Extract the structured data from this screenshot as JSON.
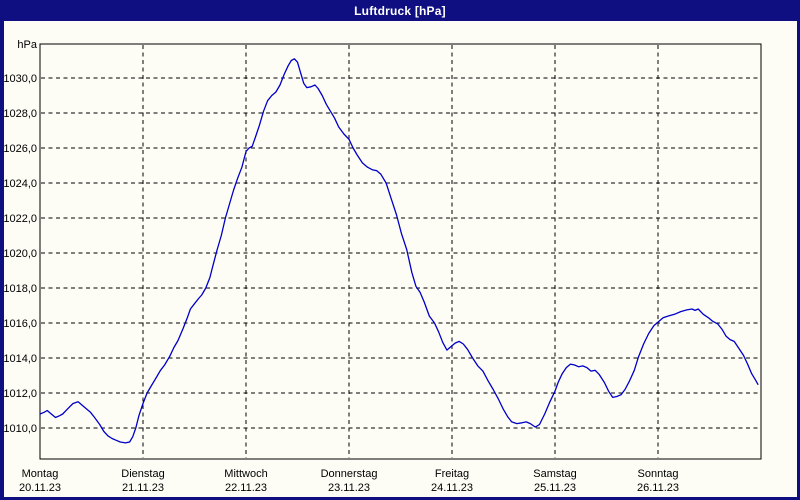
{
  "window": {
    "title": "Luftdruck [hPa]"
  },
  "colors": {
    "frame": "#0f0f82",
    "title_text": "#ffffff",
    "background": "#fdfdf6",
    "plot_background": "#fdfdf6",
    "grid": "#000000",
    "axis_text": "#000000",
    "line": "#0000c8"
  },
  "chart_data": {
    "type": "line",
    "title": "Luftdruck [hPa]",
    "ylabel": "hPa",
    "xlabel": "",
    "ylim": [
      1008.2,
      1032.0
    ],
    "xlim_days": [
      0,
      7
    ],
    "grid": "dashed",
    "legend_position": "none",
    "y_axis": {
      "unit_label": "hPa",
      "ticks": [
        {
          "value": 1030,
          "label": "1030,0"
        },
        {
          "value": 1028,
          "label": "1028,0"
        },
        {
          "value": 1026,
          "label": "1026,0"
        },
        {
          "value": 1024,
          "label": "1024,0"
        },
        {
          "value": 1022,
          "label": "1022,0"
        },
        {
          "value": 1020,
          "label": "1020,0"
        },
        {
          "value": 1018,
          "label": "1018,0"
        },
        {
          "value": 1016,
          "label": "1016,0"
        },
        {
          "value": 1014,
          "label": "1014,0"
        },
        {
          "value": 1012,
          "label": "1012,0"
        },
        {
          "value": 1010,
          "label": "1010,0"
        }
      ]
    },
    "x_axis": {
      "days": [
        {
          "weekday": "Montag",
          "date": "20.11.23"
        },
        {
          "weekday": "Dienstag",
          "date": "21.11.23"
        },
        {
          "weekday": "Mittwoch",
          "date": "22.11.23"
        },
        {
          "weekday": "Donnerstag",
          "date": "23.11.23"
        },
        {
          "weekday": "Freitag",
          "date": "24.11.23"
        },
        {
          "weekday": "Samstag",
          "date": "25.11.23"
        },
        {
          "weekday": "Sonntag",
          "date": "26.11.23"
        }
      ]
    },
    "series": [
      {
        "name": "Luftdruck",
        "color": "#0000c8",
        "points": [
          [
            0.0,
            1010.8
          ],
          [
            0.04,
            1010.9
          ],
          [
            0.07,
            1011.0
          ],
          [
            0.11,
            1010.8
          ],
          [
            0.15,
            1010.6
          ],
          [
            0.19,
            1010.7
          ],
          [
            0.22,
            1010.8
          ],
          [
            0.27,
            1011.1
          ],
          [
            0.32,
            1011.4
          ],
          [
            0.37,
            1011.5
          ],
          [
            0.41,
            1011.3
          ],
          [
            0.45,
            1011.1
          ],
          [
            0.49,
            1010.9
          ],
          [
            0.53,
            1010.6
          ],
          [
            0.58,
            1010.2
          ],
          [
            0.62,
            1009.8
          ],
          [
            0.66,
            1009.55
          ],
          [
            0.7,
            1009.4
          ],
          [
            0.74,
            1009.3
          ],
          [
            0.78,
            1009.2
          ],
          [
            0.83,
            1009.15
          ],
          [
            0.87,
            1009.2
          ],
          [
            0.9,
            1009.5
          ],
          [
            0.93,
            1010.0
          ],
          [
            0.96,
            1010.7
          ],
          [
            1.0,
            1011.4
          ],
          [
            1.04,
            1012.0
          ],
          [
            1.08,
            1012.4
          ],
          [
            1.12,
            1012.8
          ],
          [
            1.17,
            1013.3
          ],
          [
            1.21,
            1013.6
          ],
          [
            1.26,
            1014.1
          ],
          [
            1.3,
            1014.6
          ],
          [
            1.34,
            1015.0
          ],
          [
            1.39,
            1015.7
          ],
          [
            1.43,
            1016.3
          ],
          [
            1.46,
            1016.8
          ],
          [
            1.5,
            1017.1
          ],
          [
            1.54,
            1017.4
          ],
          [
            1.57,
            1017.6
          ],
          [
            1.61,
            1018.0
          ],
          [
            1.65,
            1018.6
          ],
          [
            1.68,
            1019.3
          ],
          [
            1.72,
            1020.2
          ],
          [
            1.76,
            1021.0
          ],
          [
            1.8,
            1022.0
          ],
          [
            1.84,
            1022.8
          ],
          [
            1.88,
            1023.6
          ],
          [
            1.92,
            1024.3
          ],
          [
            1.96,
            1024.9
          ],
          [
            2.0,
            1025.8
          ],
          [
            2.03,
            1026.0
          ],
          [
            2.06,
            1026.1
          ],
          [
            2.09,
            1026.6
          ],
          [
            2.13,
            1027.3
          ],
          [
            2.17,
            1028.1
          ],
          [
            2.21,
            1028.7
          ],
          [
            2.25,
            1029.0
          ],
          [
            2.29,
            1029.2
          ],
          [
            2.33,
            1029.6
          ],
          [
            2.37,
            1030.2
          ],
          [
            2.41,
            1030.7
          ],
          [
            2.44,
            1031.0
          ],
          [
            2.47,
            1031.1
          ],
          [
            2.5,
            1030.9
          ],
          [
            2.53,
            1030.3
          ],
          [
            2.56,
            1029.7
          ],
          [
            2.59,
            1029.45
          ],
          [
            2.63,
            1029.5
          ],
          [
            2.67,
            1029.6
          ],
          [
            2.7,
            1029.4
          ],
          [
            2.74,
            1029.0
          ],
          [
            2.78,
            1028.5
          ],
          [
            2.82,
            1028.1
          ],
          [
            2.86,
            1027.7
          ],
          [
            2.9,
            1027.2
          ],
          [
            2.95,
            1026.8
          ],
          [
            3.0,
            1026.5
          ],
          [
            3.04,
            1026.0
          ],
          [
            3.08,
            1025.6
          ],
          [
            3.13,
            1025.15
          ],
          [
            3.18,
            1024.9
          ],
          [
            3.23,
            1024.75
          ],
          [
            3.27,
            1024.7
          ],
          [
            3.31,
            1024.5
          ],
          [
            3.36,
            1024.0
          ],
          [
            3.41,
            1023.1
          ],
          [
            3.46,
            1022.2
          ],
          [
            3.51,
            1021.1
          ],
          [
            3.56,
            1020.2
          ],
          [
            3.61,
            1018.9
          ],
          [
            3.65,
            1018.1
          ],
          [
            3.69,
            1017.75
          ],
          [
            3.73,
            1017.2
          ],
          [
            3.78,
            1016.4
          ],
          [
            3.83,
            1016.0
          ],
          [
            3.87,
            1015.5
          ],
          [
            3.91,
            1014.9
          ],
          [
            3.95,
            1014.45
          ],
          [
            3.98,
            1014.6
          ],
          [
            4.03,
            1014.85
          ],
          [
            4.07,
            1014.95
          ],
          [
            4.11,
            1014.8
          ],
          [
            4.15,
            1014.5
          ],
          [
            4.2,
            1014.0
          ],
          [
            4.25,
            1013.55
          ],
          [
            4.3,
            1013.25
          ],
          [
            4.35,
            1012.7
          ],
          [
            4.4,
            1012.2
          ],
          [
            4.45,
            1011.65
          ],
          [
            4.5,
            1011.05
          ],
          [
            4.54,
            1010.65
          ],
          [
            4.58,
            1010.35
          ],
          [
            4.63,
            1010.25
          ],
          [
            4.68,
            1010.3
          ],
          [
            4.72,
            1010.35
          ],
          [
            4.76,
            1010.25
          ],
          [
            4.81,
            1010.05
          ],
          [
            4.85,
            1010.2
          ],
          [
            4.9,
            1010.8
          ],
          [
            4.95,
            1011.5
          ],
          [
            5.0,
            1012.1
          ],
          [
            5.03,
            1012.6
          ],
          [
            5.07,
            1013.1
          ],
          [
            5.11,
            1013.45
          ],
          [
            5.15,
            1013.65
          ],
          [
            5.19,
            1013.6
          ],
          [
            5.23,
            1013.5
          ],
          [
            5.27,
            1013.55
          ],
          [
            5.31,
            1013.45
          ],
          [
            5.35,
            1013.25
          ],
          [
            5.39,
            1013.3
          ],
          [
            5.43,
            1013.05
          ],
          [
            5.48,
            1012.6
          ],
          [
            5.52,
            1012.1
          ],
          [
            5.56,
            1011.75
          ],
          [
            5.6,
            1011.8
          ],
          [
            5.64,
            1011.9
          ],
          [
            5.68,
            1012.2
          ],
          [
            5.72,
            1012.65
          ],
          [
            5.77,
            1013.3
          ],
          [
            5.81,
            1014.05
          ],
          [
            5.86,
            1014.8
          ],
          [
            5.91,
            1015.4
          ],
          [
            5.96,
            1015.85
          ],
          [
            6.0,
            1016.05
          ],
          [
            6.05,
            1016.3
          ],
          [
            6.1,
            1016.4
          ],
          [
            6.16,
            1016.5
          ],
          [
            6.22,
            1016.65
          ],
          [
            6.28,
            1016.75
          ],
          [
            6.33,
            1016.8
          ],
          [
            6.36,
            1016.72
          ],
          [
            6.39,
            1016.8
          ],
          [
            6.44,
            1016.5
          ],
          [
            6.49,
            1016.3
          ],
          [
            6.53,
            1016.1
          ],
          [
            6.58,
            1015.95
          ],
          [
            6.62,
            1015.65
          ],
          [
            6.66,
            1015.25
          ],
          [
            6.7,
            1015.05
          ],
          [
            6.74,
            1014.95
          ],
          [
            6.78,
            1014.6
          ],
          [
            6.83,
            1014.15
          ],
          [
            6.87,
            1013.65
          ],
          [
            6.91,
            1013.1
          ],
          [
            6.95,
            1012.7
          ],
          [
            6.97,
            1012.5
          ]
        ]
      }
    ]
  }
}
